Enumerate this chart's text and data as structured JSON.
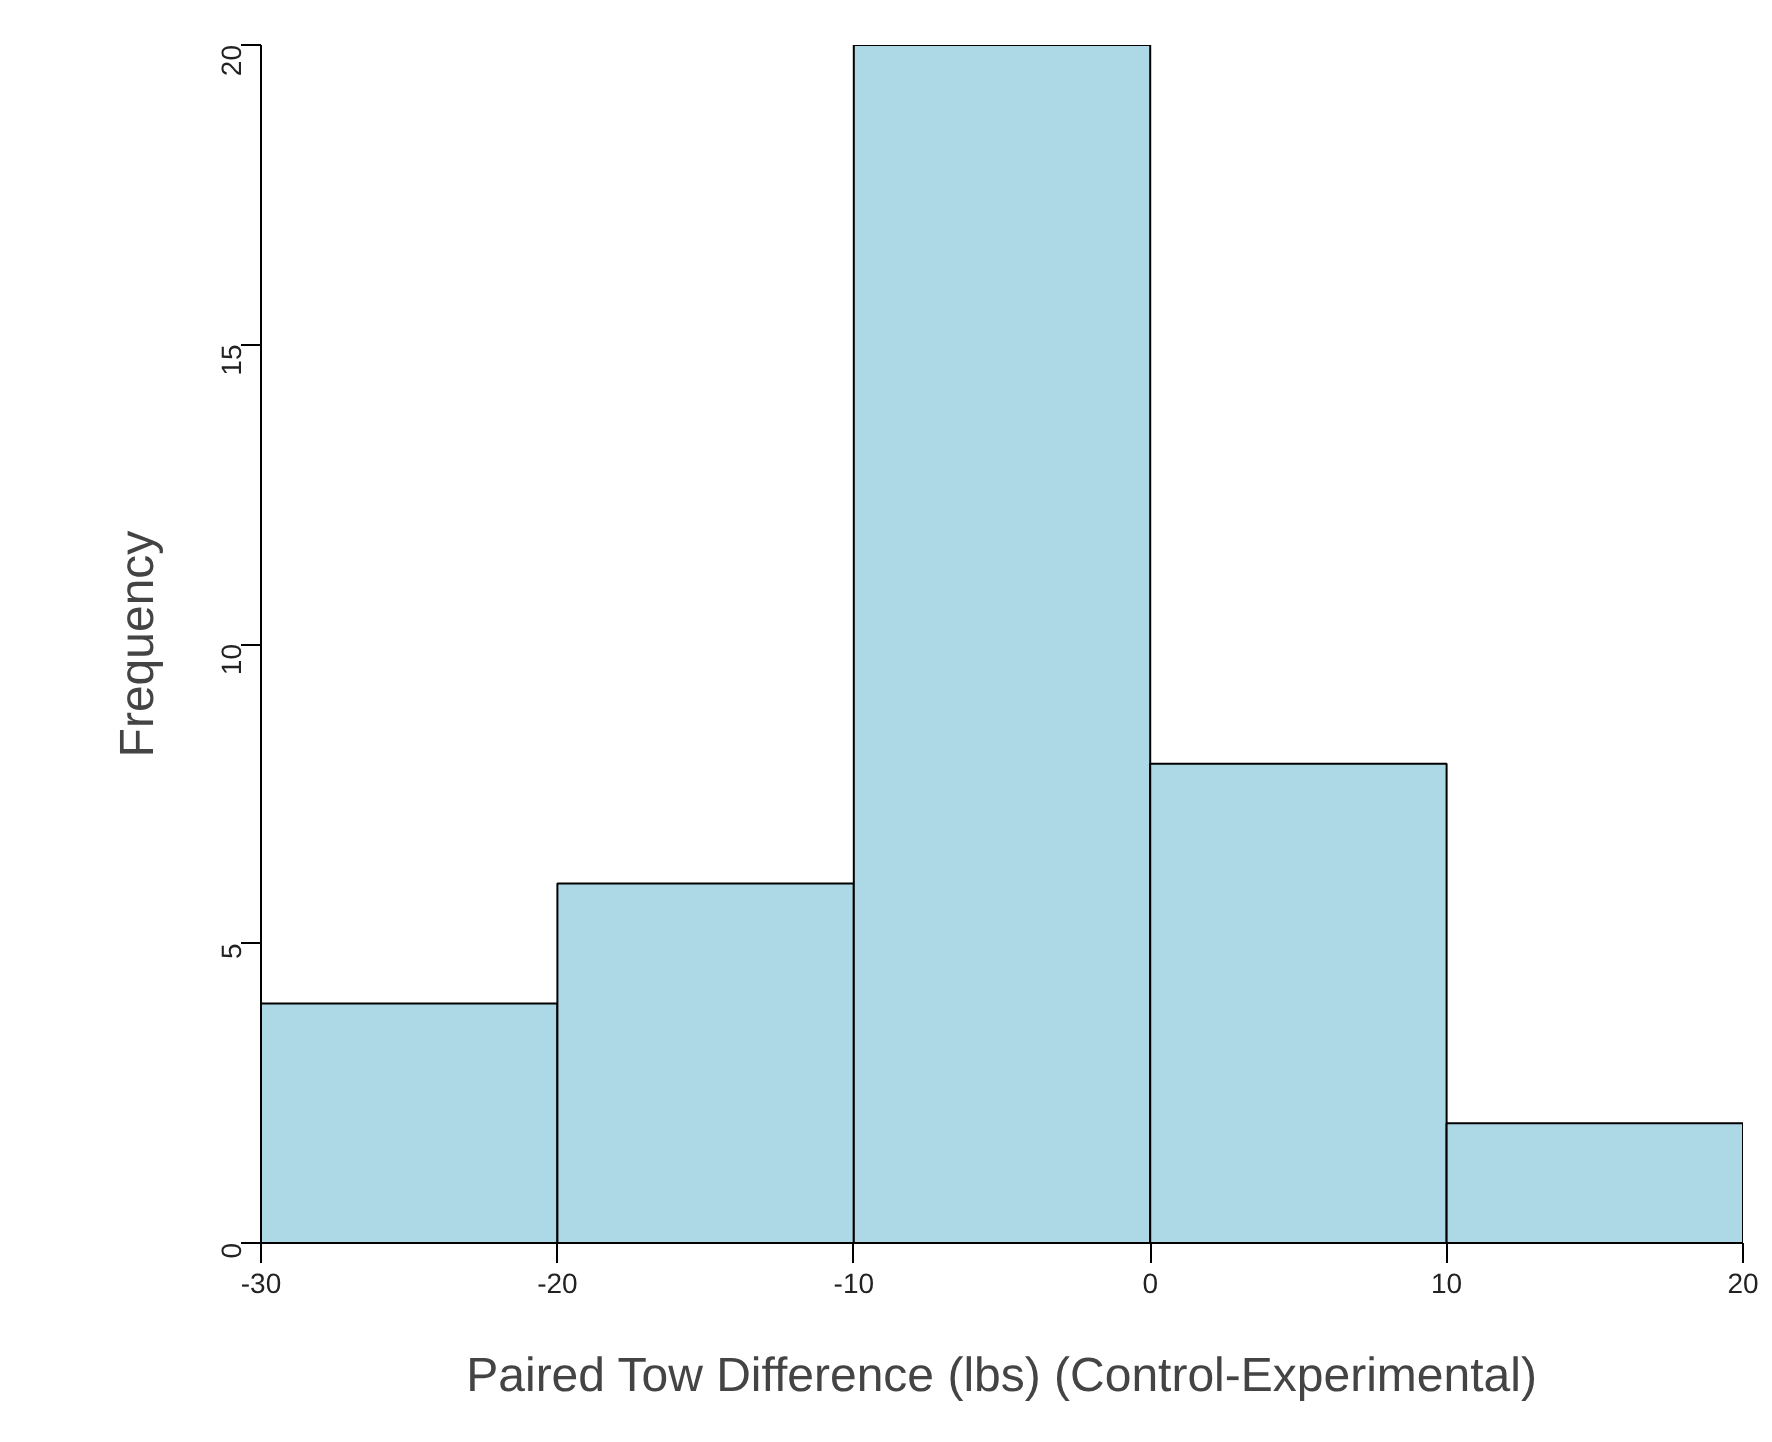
{
  "chart_data": {
    "type": "histogram",
    "xlabel": "Paired Tow Difference (lbs) (Control-Experimental)",
    "ylabel": "Frequency",
    "bins": [
      -30,
      -20,
      -10,
      0,
      10,
      20
    ],
    "values": [
      4,
      6,
      20,
      8,
      2
    ],
    "color": "#add8e6",
    "xlim": [
      -30,
      20
    ],
    "xticks": [
      -30,
      -20,
      -10,
      0,
      10,
      20
    ],
    "ylim": [
      0,
      20
    ],
    "yticks": [
      0,
      5,
      10,
      15,
      20
    ],
    "grid": false
  }
}
